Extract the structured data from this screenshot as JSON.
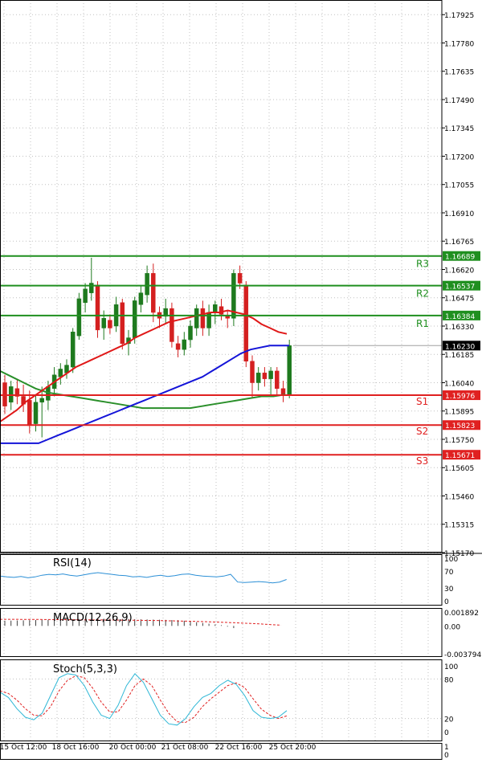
{
  "colors": {
    "background": "#ffffff",
    "grid": "#c0c0c0",
    "bull": "#1e7a1e",
    "bear": "#d42020",
    "resistance": "#1f8f1f",
    "support": "#e02020",
    "ma_red": "#e01818",
    "ma_blue": "#1414d8",
    "ma_green": "#2a8f2a",
    "rsi": "#2b8fd6",
    "macd_signal": "#e02020",
    "stoch_main": "#2fb7d6",
    "stoch_signal": "#e02020",
    "current_price": "#000000"
  },
  "chart_data": [
    {
      "type": "candlestick",
      "panel": "price",
      "ylim": [
        1.1517,
        1.18
      ],
      "y_ticks": [
        "1.17925",
        "1.17780",
        "1.17635",
        "1.17490",
        "1.17345",
        "1.17200",
        "1.17055",
        "1.16910",
        "1.16765",
        "1.16620",
        "1.16475",
        "1.16330",
        "1.16185",
        "1.16040",
        "1.15895",
        "1.15750",
        "1.15605",
        "1.15460",
        "1.15315",
        "1.15170"
      ],
      "x_ticks": [
        "15 Oct 12:00",
        "18 Oct 16:00",
        "20 Oct 00:00",
        "21 Oct 08:00",
        "22 Oct 16:00",
        "25 Oct 20:00"
      ],
      "current_price": {
        "label": "1.16230",
        "value": 1.1623
      },
      "levels": [
        {
          "name": "R3",
          "value": 1.16689,
          "label": "1.16689",
          "kind": "resistance"
        },
        {
          "name": "R2",
          "value": 1.16537,
          "label": "1.16537",
          "kind": "resistance"
        },
        {
          "name": "R1",
          "value": 1.16384,
          "label": "1.16384",
          "kind": "resistance"
        },
        {
          "name": "S1",
          "value": 1.15976,
          "label": "1.15976",
          "kind": "support"
        },
        {
          "name": "S2",
          "value": 1.15823,
          "label": "1.15823",
          "kind": "support"
        },
        {
          "name": "S3",
          "value": 1.15671,
          "label": "1.15671",
          "kind": "support"
        }
      ],
      "candles": [
        {
          "o": 1.1604,
          "h": 1.1608,
          "l": 1.1588,
          "c": 1.1592
        },
        {
          "o": 1.1594,
          "h": 1.1605,
          "l": 1.159,
          "c": 1.1602
        },
        {
          "o": 1.1601,
          "h": 1.1606,
          "l": 1.1593,
          "c": 1.1597
        },
        {
          "o": 1.1597,
          "h": 1.1603,
          "l": 1.1589,
          "c": 1.1593
        },
        {
          "o": 1.1595,
          "h": 1.16,
          "l": 1.1578,
          "c": 1.1582
        },
        {
          "o": 1.1583,
          "h": 1.1598,
          "l": 1.1579,
          "c": 1.1594
        },
        {
          "o": 1.1594,
          "h": 1.1602,
          "l": 1.1576,
          "c": 1.1596
        },
        {
          "o": 1.1595,
          "h": 1.1605,
          "l": 1.159,
          "c": 1.1602
        },
        {
          "o": 1.1601,
          "h": 1.1612,
          "l": 1.1597,
          "c": 1.1608
        },
        {
          "o": 1.1607,
          "h": 1.1614,
          "l": 1.1603,
          "c": 1.1611
        },
        {
          "o": 1.1609,
          "h": 1.1616,
          "l": 1.1606,
          "c": 1.1613
        },
        {
          "o": 1.1612,
          "h": 1.1632,
          "l": 1.1609,
          "c": 1.163
        },
        {
          "o": 1.1628,
          "h": 1.165,
          "l": 1.1626,
          "c": 1.1647
        },
        {
          "o": 1.1645,
          "h": 1.1655,
          "l": 1.164,
          "c": 1.1652
        },
        {
          "o": 1.165,
          "h": 1.1668,
          "l": 1.1646,
          "c": 1.1655
        },
        {
          "o": 1.1654,
          "h": 1.1656,
          "l": 1.1627,
          "c": 1.1631
        },
        {
          "o": 1.1632,
          "h": 1.1641,
          "l": 1.1626,
          "c": 1.1637
        },
        {
          "o": 1.1636,
          "h": 1.1639,
          "l": 1.1629,
          "c": 1.1632
        },
        {
          "o": 1.1633,
          "h": 1.1648,
          "l": 1.163,
          "c": 1.1644
        },
        {
          "o": 1.1645,
          "h": 1.1647,
          "l": 1.1621,
          "c": 1.1624
        },
        {
          "o": 1.1624,
          "h": 1.1631,
          "l": 1.1618,
          "c": 1.1627
        },
        {
          "o": 1.1627,
          "h": 1.1648,
          "l": 1.1624,
          "c": 1.1646
        },
        {
          "o": 1.1644,
          "h": 1.1654,
          "l": 1.164,
          "c": 1.165
        },
        {
          "o": 1.1649,
          "h": 1.1664,
          "l": 1.1645,
          "c": 1.166
        },
        {
          "o": 1.166,
          "h": 1.1665,
          "l": 1.1635,
          "c": 1.164
        },
        {
          "o": 1.164,
          "h": 1.1643,
          "l": 1.1632,
          "c": 1.1637
        },
        {
          "o": 1.1638,
          "h": 1.1647,
          "l": 1.1634,
          "c": 1.1642
        },
        {
          "o": 1.1642,
          "h": 1.1645,
          "l": 1.1622,
          "c": 1.1625
        },
        {
          "o": 1.1624,
          "h": 1.1628,
          "l": 1.1617,
          "c": 1.1621
        },
        {
          "o": 1.1621,
          "h": 1.163,
          "l": 1.1618,
          "c": 1.1626
        },
        {
          "o": 1.1626,
          "h": 1.1636,
          "l": 1.1622,
          "c": 1.1633
        },
        {
          "o": 1.1632,
          "h": 1.1644,
          "l": 1.1628,
          "c": 1.1642
        },
        {
          "o": 1.1642,
          "h": 1.1646,
          "l": 1.1628,
          "c": 1.1632
        },
        {
          "o": 1.1632,
          "h": 1.1644,
          "l": 1.1628,
          "c": 1.164
        },
        {
          "o": 1.164,
          "h": 1.1646,
          "l": 1.1634,
          "c": 1.1644
        },
        {
          "o": 1.1643,
          "h": 1.1647,
          "l": 1.1636,
          "c": 1.1639
        },
        {
          "o": 1.1638,
          "h": 1.1641,
          "l": 1.1632,
          "c": 1.1637
        },
        {
          "o": 1.1637,
          "h": 1.1662,
          "l": 1.1633,
          "c": 1.166
        },
        {
          "o": 1.166,
          "h": 1.1664,
          "l": 1.1652,
          "c": 1.1655
        },
        {
          "o": 1.1654,
          "h": 1.1656,
          "l": 1.1612,
          "c": 1.1615
        },
        {
          "o": 1.1615,
          "h": 1.1618,
          "l": 1.1596,
          "c": 1.1604
        },
        {
          "o": 1.1604,
          "h": 1.1612,
          "l": 1.16,
          "c": 1.1609
        },
        {
          "o": 1.1609,
          "h": 1.1612,
          "l": 1.1602,
          "c": 1.1606
        },
        {
          "o": 1.1606,
          "h": 1.1612,
          "l": 1.1598,
          "c": 1.161
        },
        {
          "o": 1.161,
          "h": 1.1612,
          "l": 1.1598,
          "c": 1.1601
        },
        {
          "o": 1.1601,
          "h": 1.1605,
          "l": 1.1594,
          "c": 1.1598
        },
        {
          "o": 1.1598,
          "h": 1.1626,
          "l": 1.1596,
          "c": 1.1623
        }
      ],
      "ma_red": [
        1.1584,
        1.1587,
        1.159,
        1.1594,
        1.1597,
        1.16,
        1.1603,
        1.1606,
        1.1609,
        1.1612,
        1.1614,
        1.1616,
        1.1618,
        1.162,
        1.1622,
        1.1624,
        1.1627,
        1.1629,
        1.1631,
        1.1633,
        1.1635,
        1.1636,
        1.1637,
        1.1638,
        1.1639,
        1.164,
        1.164,
        1.1641,
        1.164,
        1.1639,
        1.1637,
        1.1634,
        1.1632,
        1.163,
        1.1629
      ],
      "ma_blue": [
        1.1573,
        1.1573,
        1.1573,
        1.1573,
        1.1573,
        1.1575,
        1.1577,
        1.1579,
        1.1581,
        1.1583,
        1.1585,
        1.1587,
        1.1589,
        1.1591,
        1.1593,
        1.1595,
        1.1597,
        1.1599,
        1.1601,
        1.1603,
        1.1605,
        1.1607,
        1.161,
        1.1613,
        1.1616,
        1.1619,
        1.1621,
        1.1622,
        1.1623,
        1.1623,
        1.1623
      ],
      "ma_green": [
        1.161,
        1.1607,
        1.1604,
        1.1601,
        1.1599,
        1.1598,
        1.1597,
        1.1596,
        1.1595,
        1.1594,
        1.1593,
        1.1592,
        1.1591,
        1.1591,
        1.1591,
        1.1591,
        1.1591,
        1.1592,
        1.1593,
        1.1594,
        1.1595,
        1.1596,
        1.1597,
        1.1597,
        1.1598
      ]
    },
    {
      "type": "line",
      "panel": "rsi",
      "title": "RSI(14)",
      "ylim": [
        0,
        100
      ],
      "y_ticks": [
        "100",
        "70",
        "30",
        "0"
      ],
      "series": [
        {
          "values": [
            58,
            56,
            55,
            57,
            54,
            56,
            60,
            62,
            61,
            63,
            60,
            58,
            61,
            64,
            66,
            64,
            62,
            60,
            59,
            56,
            57,
            55,
            58,
            60,
            57,
            59,
            62,
            63,
            60,
            58,
            57,
            56,
            58,
            62,
            44,
            43,
            44,
            45,
            44,
            42,
            44,
            50
          ]
        }
      ]
    },
    {
      "type": "bar",
      "panel": "macd",
      "title": "MACD(12,26,9)",
      "ylim": [
        -0.003794,
        0.001892
      ],
      "y_ticks": [
        "0.001892",
        "0.00",
        "-0.003794"
      ],
      "series": [
        {
          "values": [
            0.0007,
            0.00072,
            0.00074,
            0.00076,
            0.00078,
            0.0008,
            0.00082,
            0.00084,
            0.00086,
            0.00088,
            0.0009,
            0.00092,
            0.00094,
            0.00096,
            0.00097,
            0.00098,
            0.00098,
            0.00098,
            0.00098,
            0.00096,
            0.00094,
            0.00092,
            0.0009,
            0.00088,
            0.00086,
            0.00084,
            0.00082,
            0.0008,
            0.00078,
            0.0007,
            0.0006,
            0.0005,
            0.0004,
            0.0003,
            0.0002,
            0.0001,
            -0.0001,
            -0.0003
          ]
        },
        {
          "values": [
            0.0009,
            0.0009,
            0.00089,
            0.00088,
            0.00087,
            0.00086,
            0.00085,
            0.00084,
            0.00083,
            0.00082,
            0.00081,
            0.0008,
            0.00079,
            0.00078,
            0.00076,
            0.00074,
            0.00072,
            0.00069,
            0.00066,
            0.00063,
            0.00059,
            0.00055,
            0.0005,
            0.00045,
            0.00039,
            0.00033,
            0.00026,
            0.00018,
            0.0001
          ]
        }
      ]
    },
    {
      "type": "line",
      "panel": "stoch",
      "title": "Stoch(5,3,3)",
      "ylim": [
        0,
        100
      ],
      "y_ticks": [
        "100",
        "80",
        "20",
        "0"
      ],
      "series": [
        {
          "values": [
            60,
            52,
            35,
            22,
            18,
            28,
            55,
            82,
            88,
            86,
            70,
            45,
            25,
            20,
            40,
            70,
            88,
            75,
            50,
            25,
            12,
            10,
            20,
            38,
            52,
            58,
            70,
            78,
            72,
            55,
            32,
            22,
            20,
            22,
            32
          ]
        },
        {
          "values": [
            62,
            58,
            48,
            35,
            25,
            24,
            38,
            62,
            78,
            85,
            82,
            66,
            45,
            30,
            30,
            48,
            70,
            80,
            70,
            48,
            28,
            15,
            14,
            22,
            38,
            50,
            60,
            70,
            74,
            67,
            50,
            34,
            25,
            20,
            24
          ]
        }
      ]
    },
    {
      "type": "line",
      "panel": "empty",
      "y_ticks": [
        "1",
        "0"
      ],
      "series": []
    }
  ]
}
